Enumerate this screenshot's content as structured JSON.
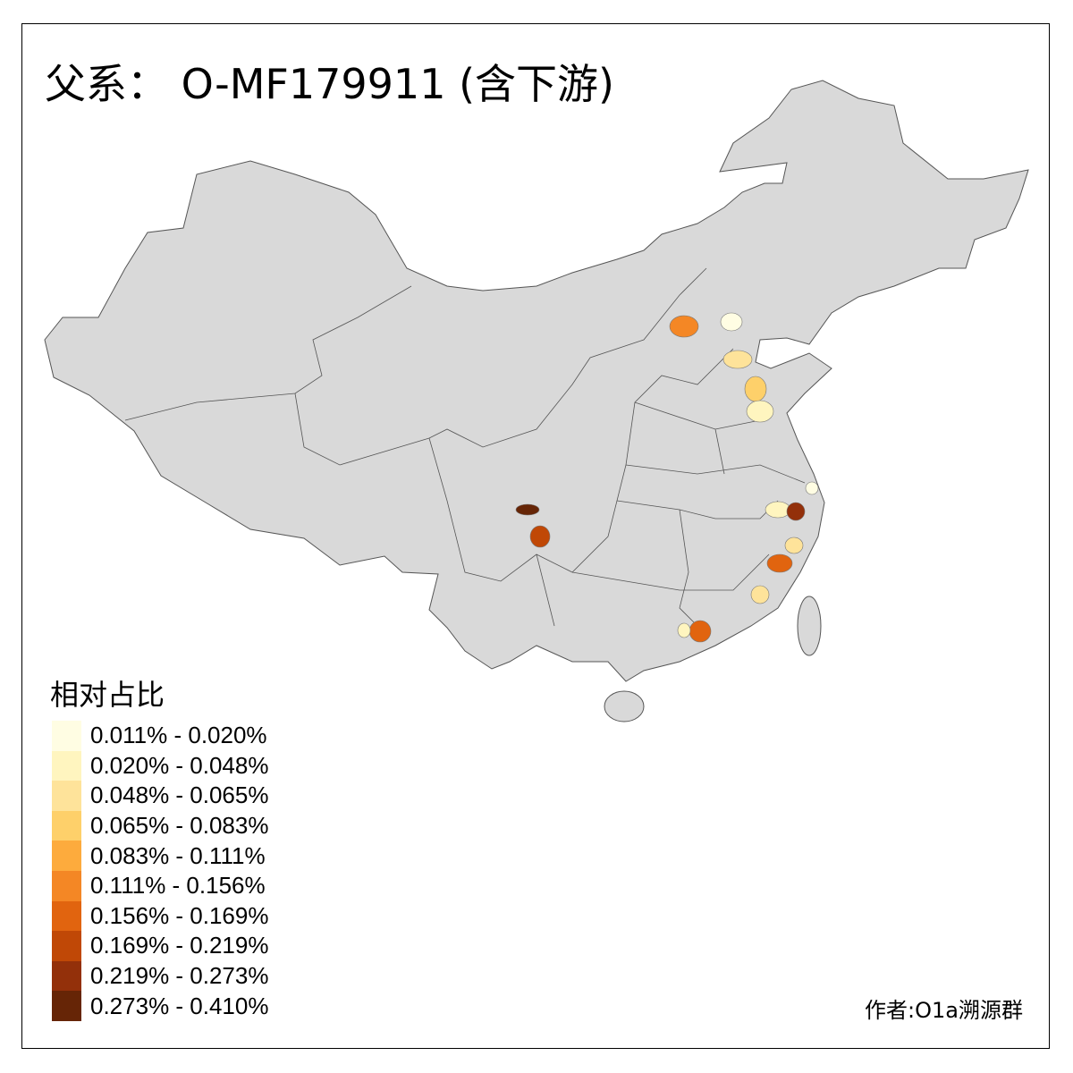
{
  "title": "父系： O-MF179911 (含下游)",
  "legend": {
    "title": "相对占比",
    "items": [
      {
        "label": "0.011% - 0.020%",
        "color": "#FFFDE3"
      },
      {
        "label": "0.020% - 0.048%",
        "color": "#FFF5BF"
      },
      {
        "label": "0.048% - 0.065%",
        "color": "#FEE39A"
      },
      {
        "label": "0.065% - 0.083%",
        "color": "#FED06A"
      },
      {
        "label": "0.083% - 0.111%",
        "color": "#FDAB3D"
      },
      {
        "label": "0.111% - 0.156%",
        "color": "#F48725"
      },
      {
        "label": "0.156% - 0.169%",
        "color": "#E1640F"
      },
      {
        "label": "0.169% - 0.219%",
        "color": "#C04806"
      },
      {
        "label": "0.219% - 0.273%",
        "color": "#93300A"
      },
      {
        "label": "0.273% - 0.410%",
        "color": "#662506"
      }
    ]
  },
  "base_color": "#D9D9D9",
  "credit": "作者:O1a溯源群"
}
